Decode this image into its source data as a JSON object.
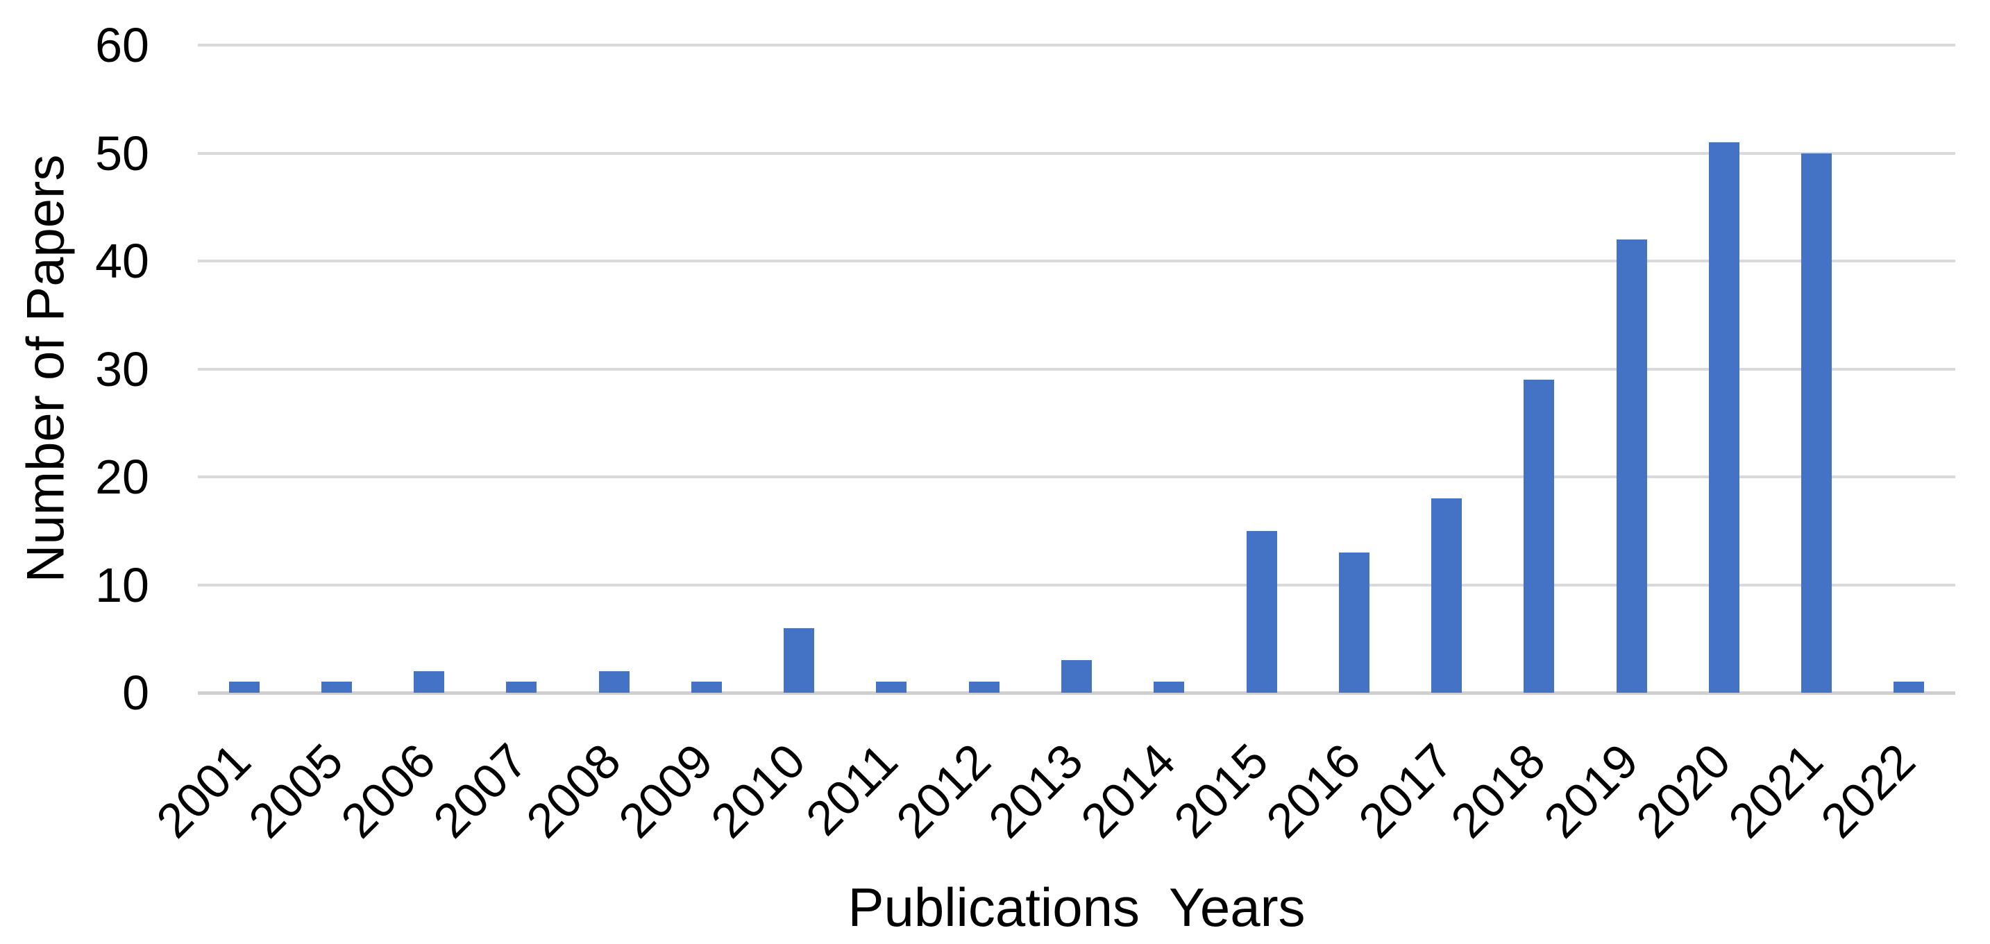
{
  "chart_data": {
    "type": "bar",
    "title": "",
    "categories": [
      "2001",
      "2005",
      "2006",
      "2007",
      "2008",
      "2009",
      "2010",
      "2011",
      "2012",
      "2013",
      "2014",
      "2015",
      "2016",
      "2017",
      "2018",
      "2019",
      "2020",
      "2021",
      "2022"
    ],
    "values": [
      1,
      1,
      2,
      1,
      2,
      1,
      6,
      1,
      1,
      3,
      1,
      15,
      13,
      18,
      29,
      42,
      51,
      50,
      1
    ],
    "xlabel": "Publications  Years",
    "ylabel": "Number of Papers",
    "ylim": [
      0,
      60
    ],
    "yticks": [
      0,
      10,
      20,
      30,
      40,
      50,
      60
    ],
    "grid": "horizontal",
    "legend": "none",
    "bar_color": "#4472c4",
    "gridline_color": "#d9d9d9",
    "axis_line_color": "#cfcfcf",
    "text_color": "#000000",
    "background_color": "#ffffff"
  }
}
